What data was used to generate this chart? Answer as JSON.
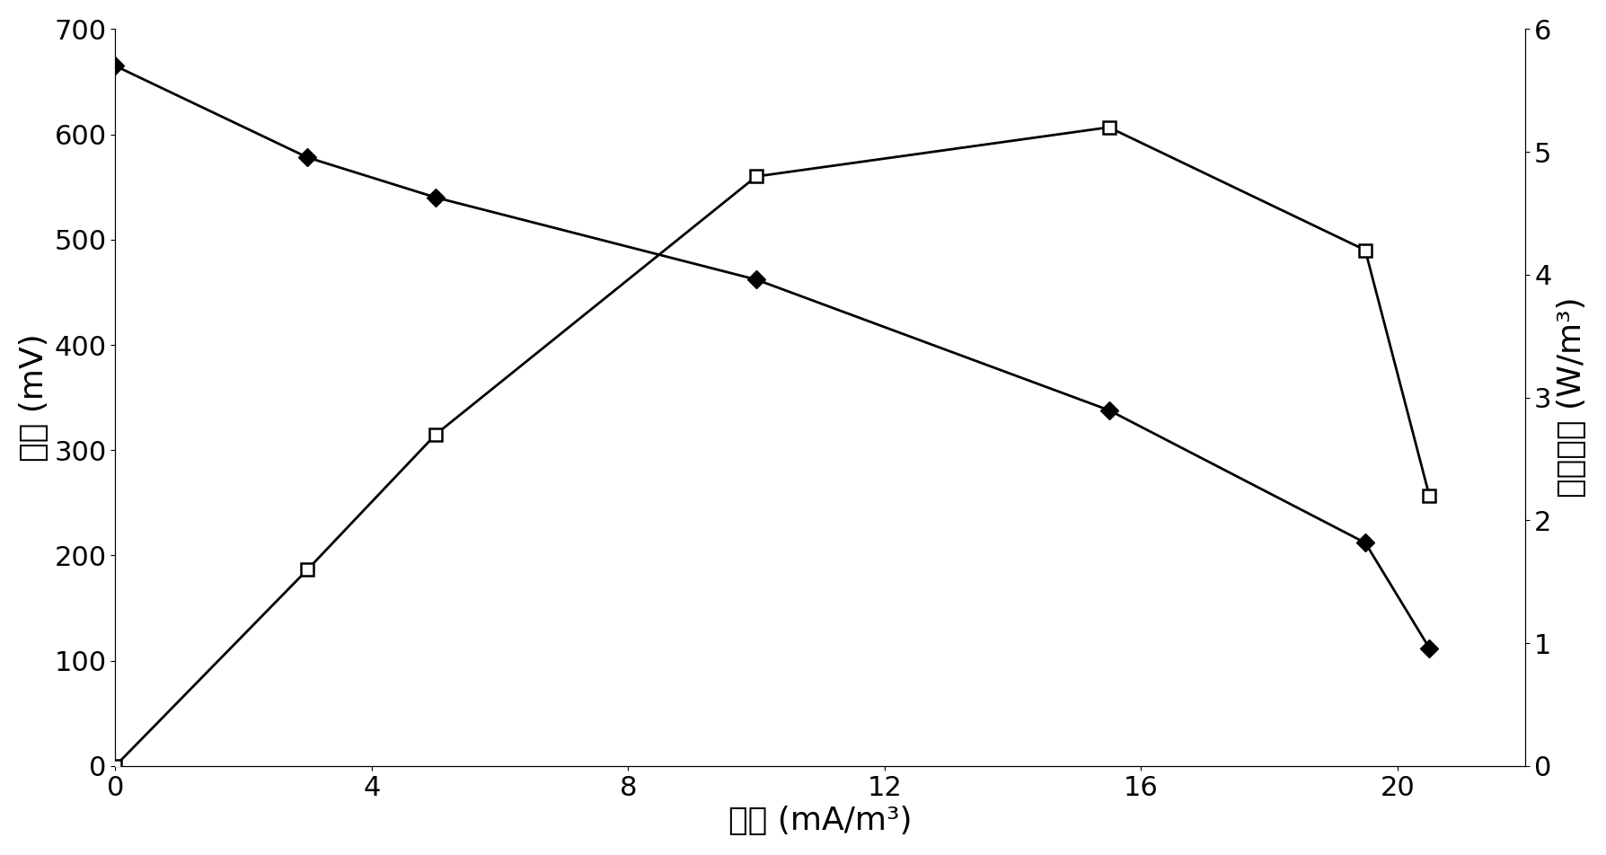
{
  "voltage_x": [
    0,
    3,
    5,
    10,
    15.5,
    19.5,
    20.5
  ],
  "voltage_y": [
    665,
    578,
    540,
    462,
    338,
    212,
    112
  ],
  "power_x": [
    0,
    3,
    5,
    10,
    15.5,
    19.5,
    20.5
  ],
  "power_y": [
    0,
    1.6,
    2.7,
    4.8,
    5.2,
    4.2,
    2.2
  ],
  "xlabel": "电流 (mA/m³)",
  "ylabel_left": "电压 (mV)",
  "ylabel_right": "功率密度 (W/m³)",
  "xlim": [
    0,
    22
  ],
  "ylim_left": [
    0,
    700
  ],
  "ylim_right": [
    0,
    6
  ],
  "xticks": [
    0,
    4,
    8,
    12,
    16,
    20
  ],
  "yticks_left": [
    0,
    100,
    200,
    300,
    400,
    500,
    600,
    700
  ],
  "yticks_right": [
    0,
    1,
    2,
    3,
    4,
    5,
    6
  ],
  "line_color": "#000000",
  "bg_color": "#ffffff",
  "tick_font_size": 22,
  "label_font_size": 26
}
